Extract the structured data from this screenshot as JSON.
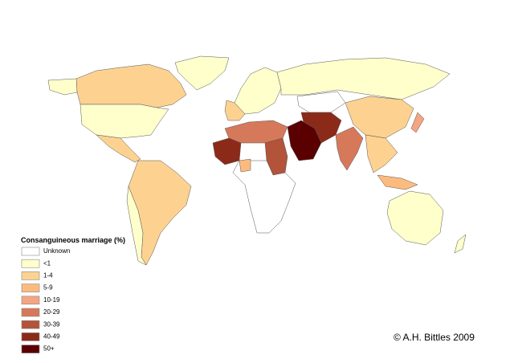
{
  "legend": {
    "title": "Consanguineous marriage (%)",
    "items": [
      {
        "label": "Unknown",
        "color": "#ffffff"
      },
      {
        "label": "<1",
        "color": "#ffffcc"
      },
      {
        "label": "1-4",
        "color": "#fdd291"
      },
      {
        "label": "5-9",
        "color": "#fcbb7e"
      },
      {
        "label": "10-19",
        "color": "#f4a582"
      },
      {
        "label": "20-29",
        "color": "#d6795a"
      },
      {
        "label": "30-39",
        "color": "#b3533a"
      },
      {
        "label": "40-49",
        "color": "#8c2a1a"
      },
      {
        "label": "50+",
        "color": "#5a0000"
      }
    ]
  },
  "credit": "© A.H. Bittles 2009"
}
